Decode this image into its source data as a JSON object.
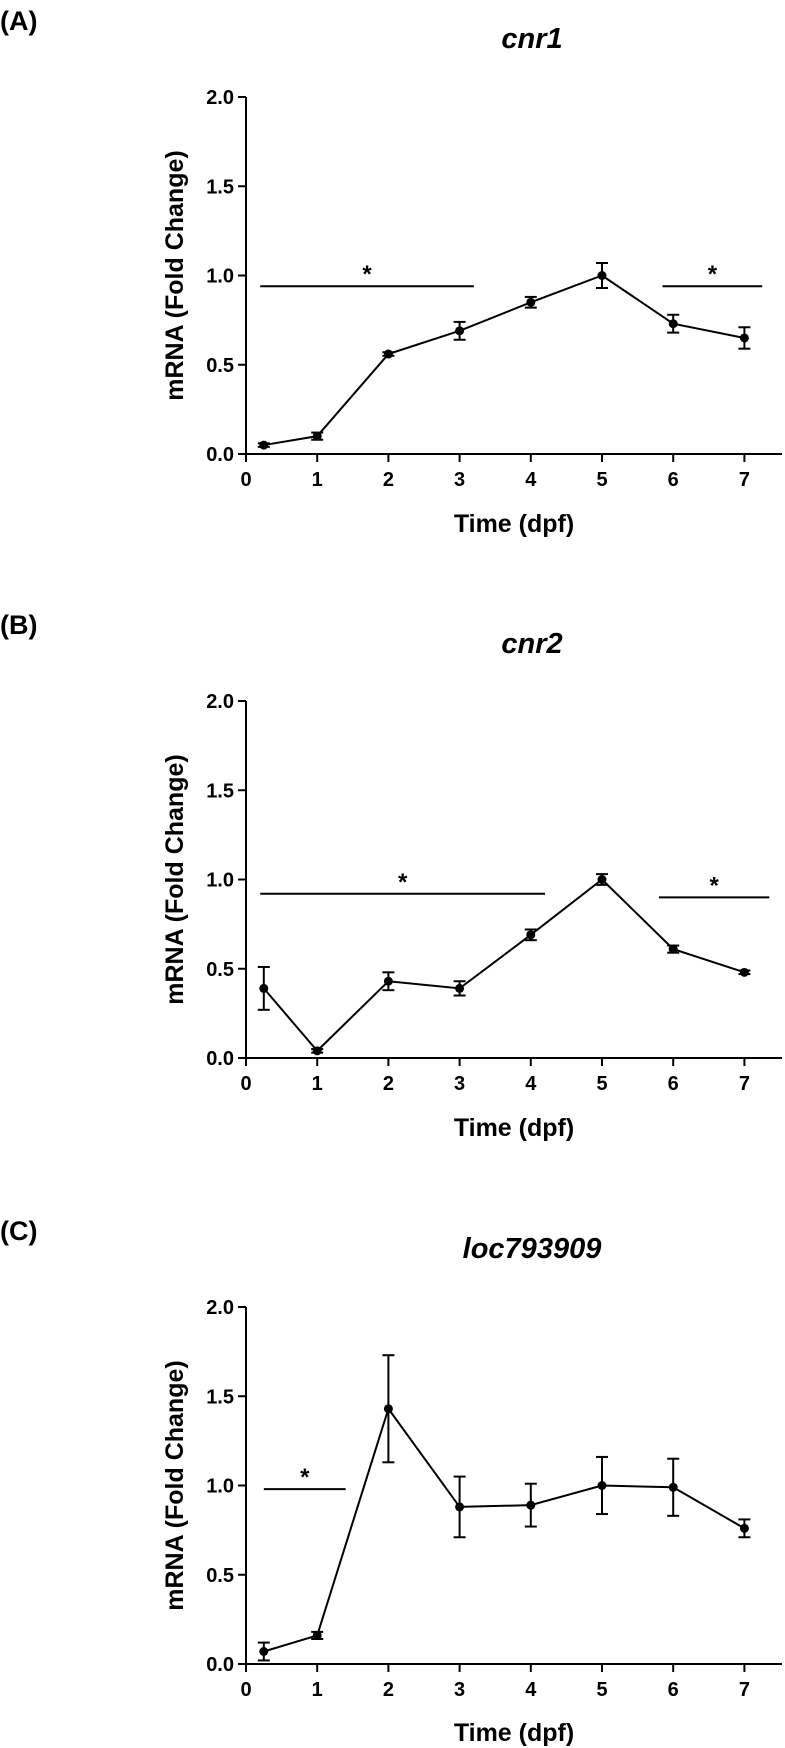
{
  "chart_data": [
    {
      "type": "line",
      "panel": "(A)",
      "title": "cnr1",
      "xlabel": "Time (dpf)",
      "ylabel": "mRNA (Fold Change)",
      "xlim": [
        0,
        7
      ],
      "ylim": [
        0,
        2
      ],
      "x_ticks": [
        "0",
        "1",
        "2",
        "3",
        "4",
        "5",
        "6",
        "7"
      ],
      "y_ticks": [
        "0.0",
        "0.5",
        "1.0",
        "1.5",
        "2.0"
      ],
      "grid": false,
      "series": [
        {
          "x": [
            0.25,
            1,
            2,
            3,
            4,
            5,
            6,
            7
          ],
          "y": [
            0.05,
            0.1,
            0.56,
            0.69,
            0.85,
            1.0,
            0.73,
            0.65
          ],
          "error": [
            0.01,
            0.02,
            0.01,
            0.05,
            0.03,
            0.07,
            0.05,
            0.06
          ]
        }
      ],
      "significance": [
        {
          "label": "*",
          "x_range": [
            0.2,
            3.2
          ],
          "y": 0.94
        },
        {
          "label": "*",
          "x_range": [
            5.85,
            7.25
          ],
          "y": 0.94
        }
      ]
    },
    {
      "type": "line",
      "panel": "(B)",
      "title": "cnr2",
      "xlabel": "Time (dpf)",
      "ylabel": "mRNA (Fold Change)",
      "xlim": [
        0,
        7
      ],
      "ylim": [
        0,
        2
      ],
      "x_ticks": [
        "0",
        "1",
        "2",
        "3",
        "4",
        "5",
        "6",
        "7"
      ],
      "y_ticks": [
        "0.0",
        "0.5",
        "1.0",
        "1.5",
        "2.0"
      ],
      "grid": false,
      "series": [
        {
          "x": [
            0.25,
            1,
            2,
            3,
            4,
            5,
            6,
            7
          ],
          "y": [
            0.39,
            0.04,
            0.43,
            0.39,
            0.69,
            1.0,
            0.61,
            0.48
          ],
          "error": [
            0.12,
            0.01,
            0.05,
            0.04,
            0.03,
            0.03,
            0.02,
            0.01
          ]
        }
      ],
      "significance": [
        {
          "label": "*",
          "x_range": [
            0.2,
            4.2
          ],
          "y": 0.92
        },
        {
          "label": "*",
          "x_range": [
            5.8,
            7.35
          ],
          "y": 0.9
        }
      ]
    },
    {
      "type": "line",
      "panel": "(C)",
      "title": "loc793909",
      "xlabel": "Time (dpf)",
      "ylabel": "mRNA (Fold Change)",
      "xlim": [
        0,
        7
      ],
      "ylim": [
        0,
        2
      ],
      "x_ticks": [
        "0",
        "1",
        "2",
        "3",
        "4",
        "5",
        "6",
        "7"
      ],
      "y_ticks": [
        "0.0",
        "0.5",
        "1.0",
        "1.5",
        "2.0"
      ],
      "grid": false,
      "series": [
        {
          "x": [
            0.25,
            1,
            2,
            3,
            4,
            5,
            6,
            7
          ],
          "y": [
            0.07,
            0.16,
            1.43,
            0.88,
            0.89,
            1.0,
            0.99,
            0.76
          ],
          "error": [
            0.05,
            0.02,
            0.3,
            0.17,
            0.12,
            0.16,
            0.16,
            0.05
          ]
        }
      ],
      "significance": [
        {
          "label": "*",
          "x_range": [
            0.25,
            1.4
          ],
          "y": 0.98
        }
      ]
    }
  ]
}
